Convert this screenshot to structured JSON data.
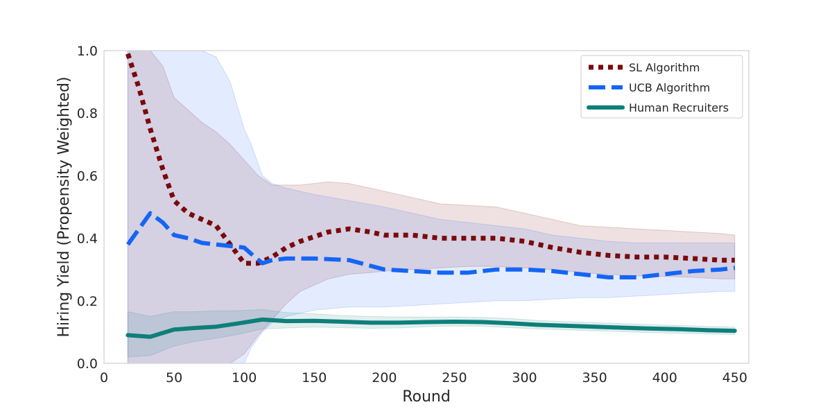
{
  "chart_data": {
    "type": "line",
    "title": "",
    "xlabel": "Round",
    "ylabel": "Hiring Yield (Propensity Weighted)",
    "xlim": [
      0,
      460
    ],
    "ylim": [
      0,
      1.0
    ],
    "xticks": [
      0,
      50,
      100,
      150,
      200,
      250,
      300,
      350,
      400,
      450
    ],
    "yticks": [
      0.0,
      0.2,
      0.4,
      0.6,
      0.8,
      1.0
    ],
    "xtick_labels": [
      "0",
      "50",
      "100",
      "150",
      "200",
      "250",
      "300",
      "350",
      "400",
      "450"
    ],
    "ytick_labels": [
      "0.0",
      "0.2",
      "0.4",
      "0.6",
      "0.8",
      "1.0"
    ],
    "grid": false,
    "legend_position": "top-right",
    "series": [
      {
        "name": "SL Algorithm",
        "color": "#7b0a0a",
        "style": "dotted",
        "x": [
          17,
          25,
          33,
          42,
          50,
          60,
          70,
          80,
          90,
          100,
          110,
          120,
          130,
          140,
          160,
          175,
          190,
          200,
          220,
          240,
          260,
          280,
          300,
          320,
          340,
          360,
          380,
          400,
          420,
          440,
          450
        ],
        "y": [
          0.99,
          0.88,
          0.75,
          0.62,
          0.52,
          0.48,
          0.46,
          0.44,
          0.38,
          0.32,
          0.32,
          0.34,
          0.37,
          0.39,
          0.42,
          0.43,
          0.42,
          0.41,
          0.41,
          0.4,
          0.4,
          0.4,
          0.39,
          0.37,
          0.355,
          0.345,
          0.34,
          0.34,
          0.335,
          0.33,
          0.33
        ],
        "band_upper": [
          1.0,
          1.0,
          1.0,
          0.95,
          0.85,
          0.81,
          0.77,
          0.74,
          0.7,
          0.65,
          0.6,
          0.57,
          0.57,
          0.57,
          0.58,
          0.575,
          0.56,
          0.55,
          0.53,
          0.51,
          0.505,
          0.5,
          0.48,
          0.46,
          0.44,
          0.435,
          0.43,
          0.425,
          0.42,
          0.415,
          0.41
        ],
        "band_lower": [
          0.0,
          0.0,
          0.0,
          0.0,
          0.0,
          0.0,
          0.0,
          0.0,
          0.0,
          0.03,
          0.09,
          0.14,
          0.19,
          0.23,
          0.27,
          0.285,
          0.29,
          0.295,
          0.3,
          0.305,
          0.31,
          0.31,
          0.305,
          0.3,
          0.29,
          0.285,
          0.28,
          0.278,
          0.275,
          0.27,
          0.27
        ]
      },
      {
        "name": "UCB Algorithm",
        "color": "#1565f5",
        "style": "dashed",
        "x": [
          17,
          25,
          33,
          42,
          50,
          60,
          70,
          80,
          90,
          100,
          105,
          113,
          120,
          130,
          150,
          175,
          200,
          220,
          240,
          260,
          280,
          300,
          320,
          340,
          360,
          380,
          400,
          420,
          440,
          450
        ],
        "y": [
          0.38,
          0.43,
          0.48,
          0.45,
          0.41,
          0.4,
          0.385,
          0.38,
          0.375,
          0.37,
          0.35,
          0.32,
          0.33,
          0.335,
          0.335,
          0.33,
          0.3,
          0.295,
          0.29,
          0.29,
          0.3,
          0.3,
          0.295,
          0.285,
          0.275,
          0.275,
          0.285,
          0.295,
          0.3,
          0.305
        ],
        "band_upper": [
          1.0,
          1.0,
          1.0,
          1.0,
          1.0,
          1.0,
          1.0,
          0.98,
          0.9,
          0.75,
          0.7,
          0.6,
          0.575,
          0.56,
          0.54,
          0.52,
          0.5,
          0.48,
          0.46,
          0.45,
          0.44,
          0.43,
          0.41,
          0.4,
          0.39,
          0.385,
          0.385,
          0.385,
          0.385,
          0.385
        ],
        "band_lower": [
          0.0,
          0.0,
          0.0,
          0.0,
          0.0,
          0.0,
          0.0,
          0.0,
          0.0,
          0.0,
          0.05,
          0.1,
          0.13,
          0.15,
          0.17,
          0.18,
          0.18,
          0.185,
          0.19,
          0.195,
          0.2,
          0.2,
          0.205,
          0.21,
          0.21,
          0.215,
          0.22,
          0.225,
          0.23,
          0.23
        ]
      },
      {
        "name": "Human Recruiters",
        "color": "#0e7f7a",
        "style": "solid",
        "x": [
          17,
          33,
          50,
          65,
          80,
          95,
          113,
          130,
          150,
          170,
          190,
          210,
          230,
          250,
          270,
          290,
          310,
          330,
          350,
          370,
          390,
          410,
          430,
          450
        ],
        "y": [
          0.09,
          0.085,
          0.108,
          0.113,
          0.117,
          0.127,
          0.14,
          0.135,
          0.136,
          0.133,
          0.13,
          0.13,
          0.132,
          0.133,
          0.132,
          0.128,
          0.123,
          0.12,
          0.117,
          0.114,
          0.111,
          0.109,
          0.106,
          0.104
        ],
        "band_upper": [
          0.165,
          0.15,
          0.165,
          0.165,
          0.168,
          0.168,
          0.172,
          0.162,
          0.158,
          0.153,
          0.15,
          0.148,
          0.148,
          0.148,
          0.147,
          0.143,
          0.137,
          0.133,
          0.13,
          0.127,
          0.124,
          0.121,
          0.118,
          0.116
        ],
        "band_lower": [
          0.02,
          0.025,
          0.055,
          0.07,
          0.08,
          0.092,
          0.11,
          0.113,
          0.116,
          0.114,
          0.112,
          0.113,
          0.117,
          0.119,
          0.118,
          0.114,
          0.11,
          0.107,
          0.104,
          0.101,
          0.098,
          0.096,
          0.094,
          0.092
        ]
      }
    ]
  }
}
